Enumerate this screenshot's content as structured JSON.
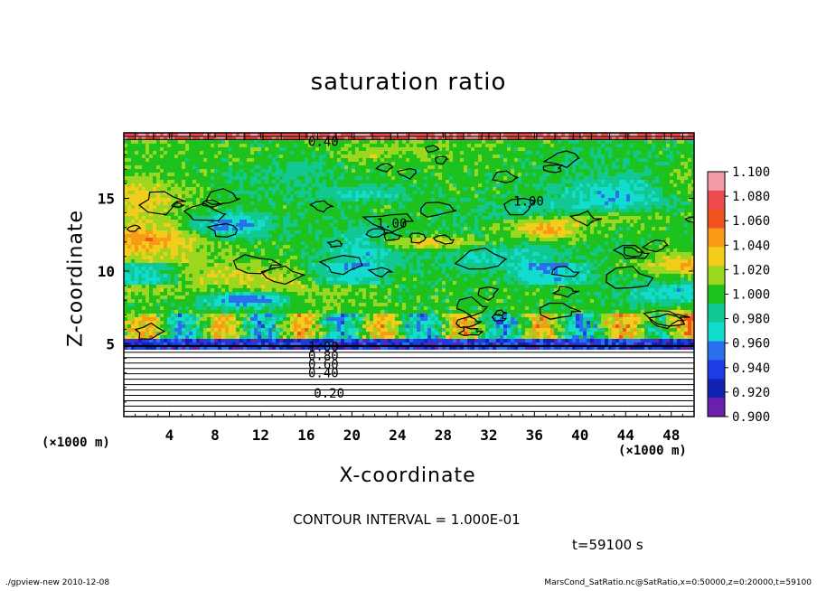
{
  "title": "saturation ratio",
  "chart_data": {
    "type": "heatmap",
    "variable": "saturation ratio",
    "xlabel": "X-coordinate",
    "ylabel": "Z-coordinate",
    "x_unit": "(×1000 m)",
    "x_ticks": [
      4,
      8,
      12,
      16,
      20,
      24,
      28,
      32,
      36,
      40,
      44,
      48
    ],
    "y_ticks": [
      5,
      10,
      15
    ],
    "xlim": [
      0,
      50
    ],
    "ylim": [
      0,
      19.5
    ],
    "contour_labels": [
      {
        "text": "0.20",
        "x": 18.0,
        "z": 1.6
      },
      {
        "text": "0.40",
        "x": 17.5,
        "z": 3.0
      },
      {
        "text": "0.60",
        "x": 17.5,
        "z": 3.6
      },
      {
        "text": "0.80",
        "x": 17.5,
        "z": 4.2
      },
      {
        "text": "1.00",
        "x": 17.5,
        "z": 4.8
      },
      {
        "text": "1.00",
        "x": 23.5,
        "z": 13.3
      },
      {
        "text": "1.00",
        "x": 35.5,
        "z": 14.8
      },
      {
        "text": "0.40",
        "x": 17.5,
        "z": 18.9
      }
    ],
    "colorbar": {
      "labels": [
        "1.100",
        "1.080",
        "1.060",
        "1.040",
        "1.020",
        "1.000",
        "0.980",
        "0.960",
        "0.940",
        "0.920",
        "0.900"
      ],
      "colors": [
        "#f19ca6",
        "#ec4a4c",
        "#f0531d",
        "#f99b17",
        "#f3cc1c",
        "#9dd61e",
        "#1ec21e",
        "#12c892",
        "#12dccd",
        "#2b6ff0",
        "#1d3ce6",
        "#1222b4",
        "#6a1fad"
      ]
    },
    "contour_interval": "CONTOUR INTERVAL = 1.000E-01",
    "time": "t=59100 s"
  },
  "footer": {
    "left": "./gpview-new   2010-12-08",
    "right": "MarsCond_SatRatio.nc@SatRatio,x=0:50000,z=0:20000,t=59100"
  }
}
